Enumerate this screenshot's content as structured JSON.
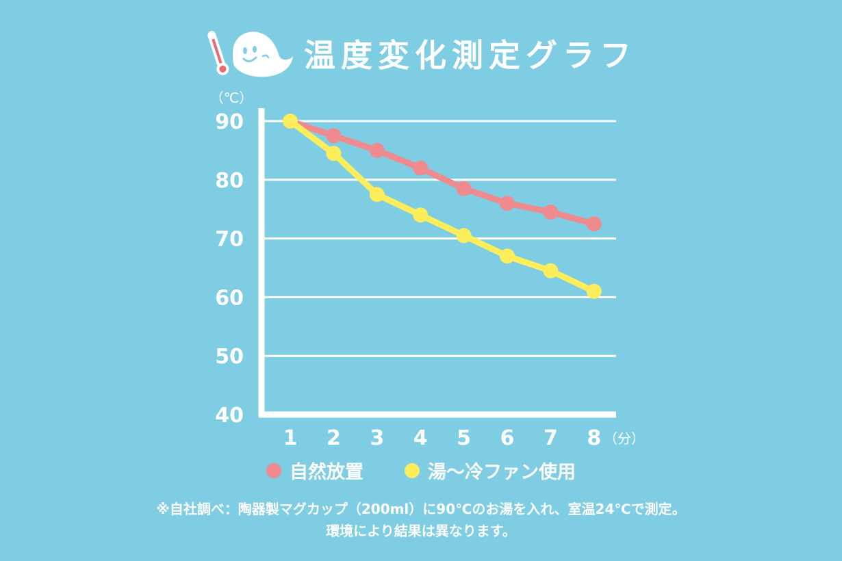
{
  "title": "温度変化測定グラフ",
  "colors": {
    "background": "#7ecde3",
    "natural": "#ef8a8f",
    "fan": "#fbee5a",
    "axis": "#ffffff"
  },
  "icons": [
    "thermometer-icon",
    "ghost-mascot-icon"
  ],
  "legend": {
    "natural": "自然放置",
    "fan": "湯～冷ファン使用"
  },
  "footnote": {
    "line1": "※自社調べ：陶器製マグカップ（200ml）に90℃のお湯を入れ、室温24℃で測定。",
    "line2": "環境により結果は異なります。"
  },
  "chart_data": {
    "type": "line",
    "x": [
      1,
      2,
      3,
      4,
      5,
      6,
      7,
      8
    ],
    "series": [
      {
        "name": "自然放置",
        "values": [
          90,
          87.5,
          85,
          82,
          78.5,
          76,
          74.5,
          72.5
        ]
      },
      {
        "name": "湯～冷ファン使用",
        "values": [
          90,
          84.5,
          77.5,
          74,
          70.5,
          67,
          64.5,
          61
        ]
      }
    ],
    "ylim": [
      40,
      90
    ],
    "yticks": [
      "90",
      "80",
      "70",
      "60",
      "50",
      "40"
    ],
    "xticks": [
      "1",
      "2",
      "3",
      "4",
      "5",
      "6",
      "7",
      "8"
    ],
    "ylabel": "（℃）",
    "xlabel": "（分）",
    "grid": true,
    "legend_position": "bottom"
  }
}
